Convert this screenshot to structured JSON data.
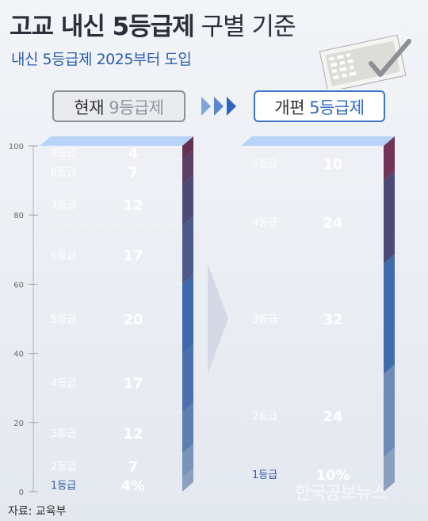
{
  "title_main": "고교 내신 5등급제",
  "title_rest": " 구별 기준",
  "subtitle": "내신 5등급제 2025부터 도입",
  "source": "자료: 교육부",
  "watermark": "한국공보뉴스",
  "left_label": {
    "prefix": "현재 ",
    "num": "9등급제"
  },
  "right_label": {
    "prefix": "개편 ",
    "num": "5등급제"
  },
  "chart_data": [
    {
      "type": "bar",
      "stacked": true,
      "title": "현재 9등급제",
      "categories": [
        "1등급",
        "2등급",
        "3등급",
        "4등급",
        "5등급",
        "6등급",
        "7등급",
        "8등급",
        "9등급"
      ],
      "values": [
        4,
        7,
        12,
        17,
        20,
        17,
        12,
        7,
        4
      ],
      "value_labels": [
        "4%",
        "7",
        "12",
        "17",
        "20",
        "17",
        "12",
        "7",
        "4"
      ],
      "yticks": [
        "0",
        "20",
        "40",
        "60",
        "80",
        "100"
      ],
      "ylim": [
        0,
        100
      ]
    },
    {
      "type": "bar",
      "stacked": true,
      "title": "개편 5등급제",
      "categories": [
        "1등급",
        "2등급",
        "3등급",
        "4등급",
        "5등급"
      ],
      "values": [
        10,
        24,
        32,
        24,
        10
      ],
      "value_labels": [
        "10%",
        "24",
        "32",
        "24",
        "10"
      ],
      "ylim": [
        0,
        100
      ]
    }
  ],
  "colors": {
    "left": [
      "#a9c3e6",
      "#93b3e0",
      "#6f9cd8",
      "#5a8ad3",
      "#4a7fcf",
      "#5d6ea8",
      "#5f5a92",
      "#6f4a7c",
      "#7a3a62"
    ],
    "right": [
      "#a9c3e6",
      "#86a9de",
      "#4f84d1",
      "#5f5a92",
      "#8a3f67"
    ]
  }
}
